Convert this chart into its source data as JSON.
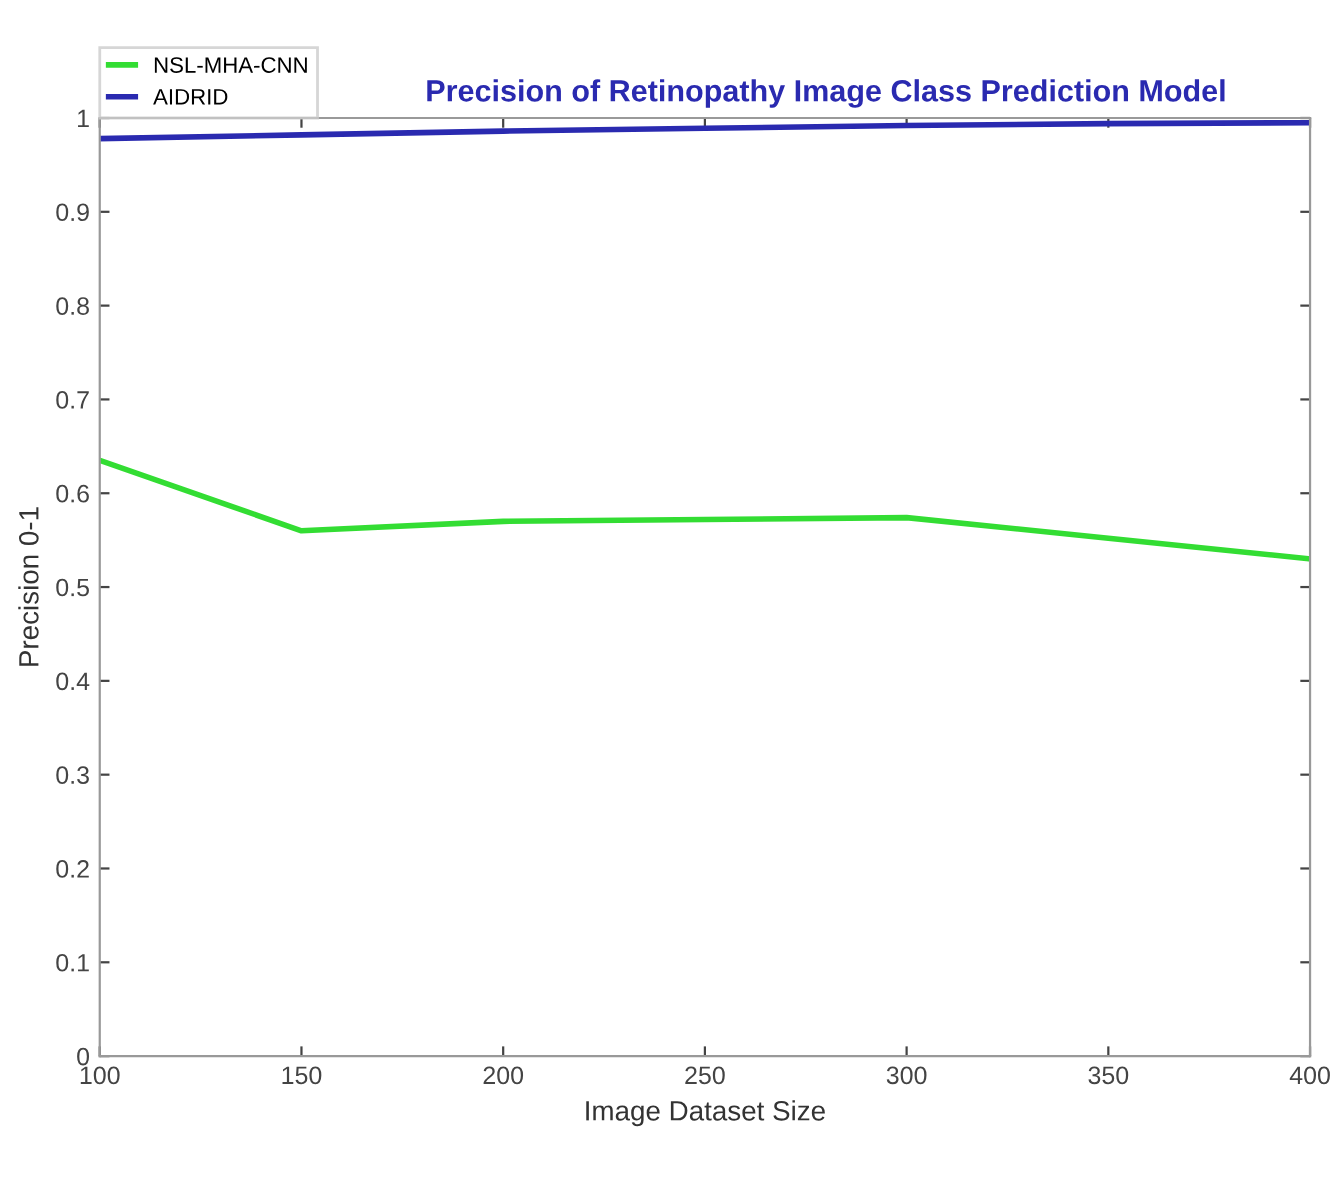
{
  "chart_data": {
    "type": "line",
    "title": "Precision of Retinopathy Image Class Prediction Model",
    "xlabel": "Image Dataset Size",
    "ylabel": "Precision 0-1",
    "x": [
      100,
      150,
      200,
      250,
      300,
      350,
      400
    ],
    "series": [
      {
        "name": "NSL-MHA-CNN",
        "color": "#33dd33",
        "values": [
          0.635,
          0.56,
          0.57,
          0.572,
          0.574,
          0.552,
          0.53
        ]
      },
      {
        "name": "AIDRID",
        "color": "#2a2ab0",
        "values": [
          0.978,
          0.982,
          0.986,
          0.989,
          0.992,
          0.994,
          0.995
        ]
      }
    ],
    "xlim": [
      100,
      400
    ],
    "xticks": [
      100,
      150,
      200,
      250,
      300,
      350,
      400
    ],
    "ylim": [
      0,
      1
    ],
    "yticks": [
      0,
      0.1,
      0.2,
      0.3,
      0.4,
      0.5,
      0.6,
      0.7,
      0.8,
      0.9,
      1
    ],
    "grid": false,
    "legend": "top left",
    "marker": "none",
    "line_style": "solid"
  }
}
